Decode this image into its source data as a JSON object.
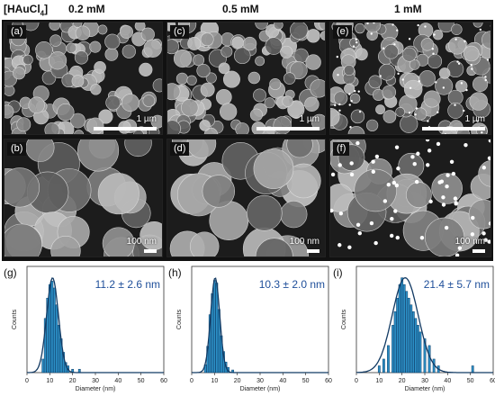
{
  "header": {
    "label_prefix": "[HAuCl",
    "label_sub": "4",
    "label_suffix": "]",
    "columns": [
      "0.2 mM",
      "0.5 mM",
      "1 mM"
    ]
  },
  "sem_panels": [
    {
      "id": "(a)",
      "scale": "1 µm"
    },
    {
      "id": "(c)",
      "scale": "1 µm"
    },
    {
      "id": "(e)",
      "scale": "1 µm"
    },
    {
      "id": "(b)",
      "scale": "100 nm"
    },
    {
      "id": "(d)",
      "scale": "100 nm"
    },
    {
      "id": "(f)",
      "scale": "100 nm"
    }
  ],
  "chart_data": [
    {
      "type": "bar",
      "panel": "(g)",
      "annotation": "11.2 ± 2.6 nm",
      "xlabel": "Diameter (nm)",
      "ylabel": "Counts",
      "xlim": [
        0,
        60
      ],
      "xticks": [
        0,
        10,
        20,
        30,
        40,
        50,
        60
      ],
      "x": [
        7,
        8,
        9,
        10,
        11,
        12,
        13,
        14,
        15,
        16,
        17,
        18,
        20,
        23
      ],
      "values": [
        4,
        16,
        22,
        26,
        27,
        25,
        20,
        14,
        10,
        6,
        3,
        2,
        1,
        1
      ],
      "fit_mean": 11.2,
      "fit_sd": 2.6,
      "fit_peak": 28
    },
    {
      "type": "bar",
      "panel": "(h)",
      "annotation": "10.3 ± 2.0 nm",
      "xlabel": "Diameter (nm)",
      "ylabel": "Counts",
      "xlim": [
        0,
        60
      ],
      "xticks": [
        0,
        10,
        20,
        30,
        40,
        50,
        60
      ],
      "x": [
        6,
        7,
        8,
        9,
        10,
        11,
        12,
        13,
        14,
        15,
        16,
        18
      ],
      "values": [
        3,
        10,
        22,
        30,
        35,
        34,
        24,
        14,
        8,
        4,
        2,
        1
      ],
      "fit_mean": 10.3,
      "fit_sd": 2.0,
      "fit_peak": 36
    },
    {
      "type": "bar",
      "panel": "(i)",
      "annotation": "21.4 ± 5.7 nm",
      "xlabel": "Diameter (nm)",
      "ylabel": "Counts",
      "xlim": [
        0,
        60
      ],
      "xticks": [
        0,
        10,
        20,
        30,
        40,
        50,
        60
      ],
      "x": [
        10,
        12,
        14,
        16,
        17,
        18,
        19,
        20,
        21,
        22,
        23,
        24,
        25,
        26,
        27,
        28,
        30,
        32,
        34,
        36,
        51
      ],
      "values": [
        1,
        2,
        4,
        7,
        9,
        11,
        13,
        14,
        13,
        12,
        11,
        10,
        9,
        8,
        7,
        6,
        5,
        4,
        2,
        1,
        1
      ],
      "fit_mean": 21.4,
      "fit_sd": 5.7,
      "fit_peak": 14
    }
  ],
  "colors": {
    "bar_fill": "#2b8fc5",
    "bar_edge": "#0e3f6b",
    "fit_line": "#123a63",
    "annotation": "#1f4f9a"
  }
}
